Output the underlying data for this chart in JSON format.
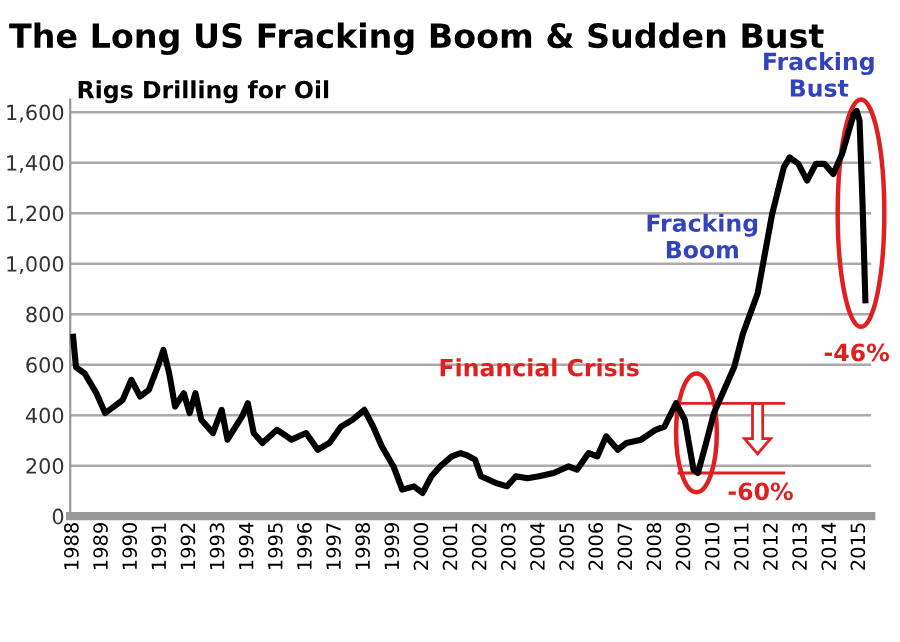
{
  "chart_data": {
    "type": "line",
    "title": "The Long US Fracking Boom & Sudden Bust",
    "subtitle": "Rigs Drilling for Oil",
    "x": [
      1988.0,
      1988.1,
      1988.4,
      1988.8,
      1989.1,
      1989.4,
      1989.7,
      1990.0,
      1990.3,
      1990.6,
      1990.9,
      1991.1,
      1991.3,
      1991.5,
      1991.8,
      1992.0,
      1992.2,
      1992.4,
      1992.8,
      1993.1,
      1993.3,
      1993.8,
      1994.0,
      1994.2,
      1994.5,
      1995.0,
      1995.5,
      1996.0,
      1996.4,
      1996.8,
      1997.2,
      1997.6,
      1998.0,
      1998.3,
      1998.6,
      1999.0,
      1999.3,
      1999.7,
      2000.0,
      2000.3,
      2000.6,
      2001.0,
      2001.3,
      2001.5,
      2001.8,
      2002.0,
      2002.5,
      2002.9,
      2003.2,
      2003.6,
      2004.0,
      2004.5,
      2005.0,
      2005.3,
      2005.7,
      2006.0,
      2006.3,
      2006.7,
      2007.0,
      2007.5,
      2008.0,
      2008.3,
      2008.7,
      2009.0,
      2009.3,
      2009.45,
      2009.7,
      2010.0,
      2010.3,
      2010.7,
      2011.0,
      2011.5,
      2012.0,
      2012.4,
      2012.6,
      2012.9,
      2013.2,
      2013.5,
      2013.8,
      2014.1,
      2014.4,
      2014.6,
      2014.8,
      2014.9,
      2015.0,
      2015.1,
      2015.2
    ],
    "series": [
      {
        "color": "#000000",
        "values": [
          710,
          590,
          565,
          487,
          408,
          434,
          460,
          540,
          474,
          500,
          590,
          658,
          565,
          434,
          487,
          408,
          487,
          382,
          329,
          421,
          303,
          395,
          447,
          329,
          290,
          342,
          303,
          329,
          263,
          290,
          355,
          382,
          421,
          355,
          276,
          197,
          105,
          118,
          92,
          158,
          197,
          237,
          250,
          242,
          224,
          158,
          132,
          118,
          158,
          150,
          158,
          171,
          197,
          184,
          250,
          237,
          316,
          263,
          290,
          303,
          342,
          355,
          447,
          382,
          184,
          171,
          276,
          408,
          487,
          592,
          724,
          882,
          1197,
          1382,
          1421,
          1395,
          1329,
          1395,
          1395,
          1355,
          1434,
          1513,
          1592,
          1605,
          1566,
          1250,
          855
        ]
      }
    ],
    "xlim": [
      1987.9,
      2015.4
    ],
    "xticks": [
      1988,
      1989,
      1990,
      1991,
      1992,
      1993,
      1994,
      1995,
      1996,
      1997,
      1998,
      1999,
      2000,
      2001,
      2002,
      2003,
      2004,
      2005,
      2006,
      2007,
      2008,
      2009,
      2010,
      2011,
      2012,
      2013,
      2014,
      2015
    ],
    "ylim": [
      0,
      1650
    ],
    "yticks": [
      {
        "value": 0,
        "label": "0"
      },
      {
        "value": 200,
        "label": "200"
      },
      {
        "value": 400,
        "label": "400"
      },
      {
        "value": 600,
        "label": "600"
      },
      {
        "value": 800,
        "label": "800"
      },
      {
        "value": 1000,
        "label": "1,000"
      },
      {
        "value": 1200,
        "label": "1,200"
      },
      {
        "value": 1400,
        "label": "1,400"
      },
      {
        "value": 1600,
        "label": "1,600"
      }
    ],
    "grid": "y",
    "legend": false,
    "marker": "none",
    "line_style": "solid",
    "annotations": [
      "Fracking\nBust",
      "Fracking\nBoom",
      "Financial Crisis",
      "-46%",
      "-60%"
    ]
  }
}
